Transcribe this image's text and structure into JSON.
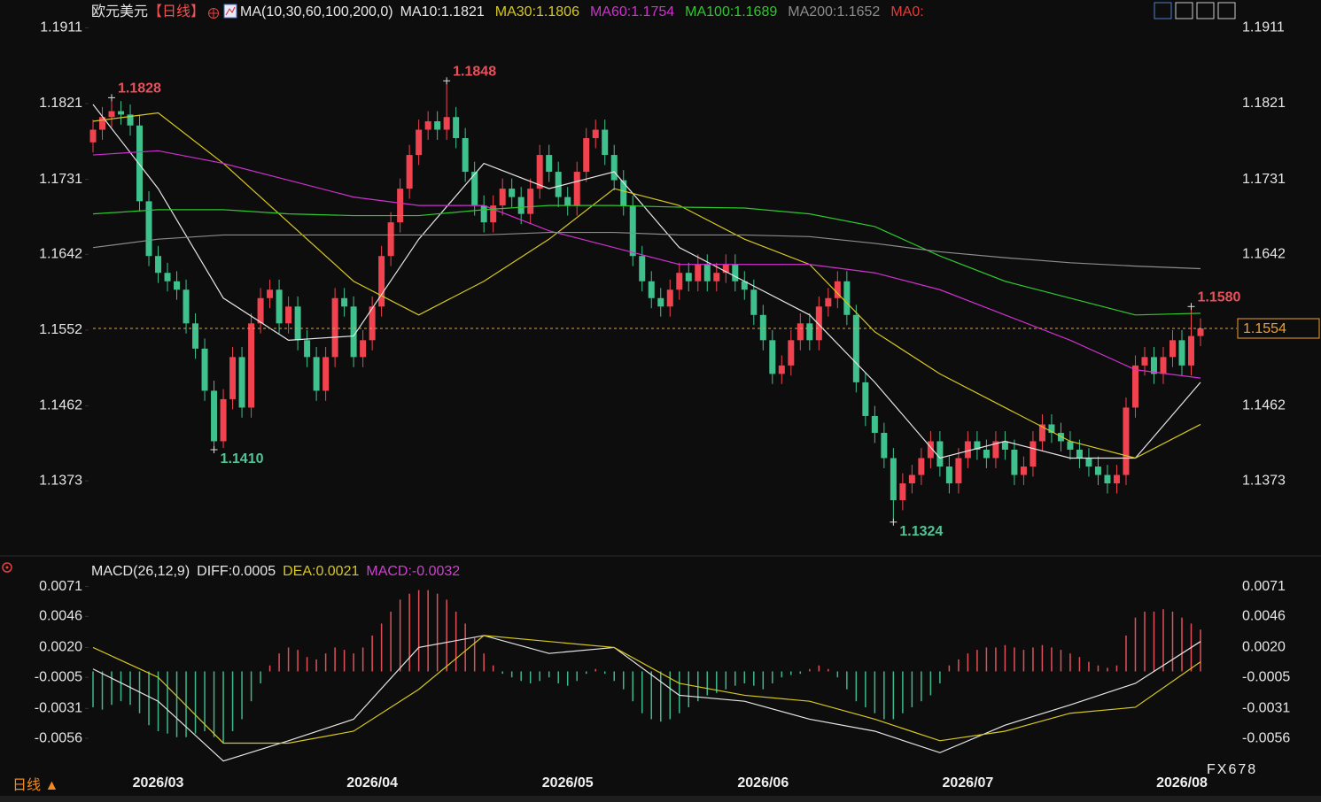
{
  "chart_data": [
    {
      "type": "candlestick",
      "title": "欧元美元",
      "period": "【日线】",
      "ma_title": "MA(10,30,60,100,200,0)",
      "colors": {
        "up": "#f0424f",
        "down": "#3ec18d",
        "title": "#e8e8e8",
        "period": "#f05050"
      },
      "open": [
        1.1775,
        1.179,
        1.1805,
        1.1812,
        1.1808,
        1.1795,
        1.1705,
        1.164,
        1.162,
        1.161,
        1.16,
        1.156,
        1.153,
        1.148,
        1.142,
        1.147,
        1.152,
        1.146,
        1.156,
        1.159,
        1.16,
        1.156,
        1.158,
        1.154,
        1.152,
        1.148,
        1.152,
        1.159,
        1.158,
        1.152,
        1.154,
        1.158,
        1.164,
        1.168,
        1.172,
        1.176,
        1.179,
        1.18,
        1.179,
        1.1805,
        1.178,
        1.174,
        1.17,
        1.168,
        1.17,
        1.172,
        1.171,
        1.169,
        1.172,
        1.176,
        1.174,
        1.171,
        1.17,
        1.174,
        1.178,
        1.179,
        1.176,
        1.173,
        1.17,
        1.164,
        1.161,
        1.159,
        1.158,
        1.16,
        1.162,
        1.161,
        1.163,
        1.161,
        1.162,
        1.163,
        1.161,
        1.16,
        1.157,
        1.154,
        1.15,
        1.151,
        1.154,
        1.156,
        1.154,
        1.158,
        1.159,
        1.161,
        1.157,
        1.149,
        1.145,
        1.143,
        1.14,
        1.135,
        1.137,
        1.138,
        1.14,
        1.142,
        1.139,
        1.137,
        1.14,
        1.142,
        1.141,
        1.14,
        1.142,
        1.141,
        1.138,
        1.139,
        1.142,
        1.144,
        1.143,
        1.142,
        1.141,
        1.14,
        1.139,
        1.138,
        1.137,
        1.138,
        1.146,
        1.151,
        1.152,
        1.15,
        1.152,
        1.154,
        1.151,
        1.1545
      ],
      "high": [
        1.1802,
        1.1817,
        1.1828,
        1.1824,
        1.182,
        1.1807,
        1.1717,
        1.1652,
        1.1632,
        1.1622,
        1.1612,
        1.1572,
        1.1542,
        1.1492,
        1.1482,
        1.1532,
        1.1532,
        1.1572,
        1.1602,
        1.1612,
        1.1612,
        1.1592,
        1.1592,
        1.1552,
        1.1532,
        1.1532,
        1.1602,
        1.1602,
        1.1592,
        1.1552,
        1.1592,
        1.1652,
        1.1692,
        1.1732,
        1.1772,
        1.1802,
        1.1812,
        1.1812,
        1.1848,
        1.1817,
        1.1792,
        1.1752,
        1.1712,
        1.1712,
        1.1732,
        1.1732,
        1.1722,
        1.1732,
        1.1772,
        1.1772,
        1.1752,
        1.1722,
        1.1752,
        1.1792,
        1.1802,
        1.1802,
        1.1772,
        1.1742,
        1.1712,
        1.1652,
        1.1622,
        1.1602,
        1.1612,
        1.1632,
        1.1632,
        1.1642,
        1.1642,
        1.1632,
        1.1642,
        1.1642,
        1.1622,
        1.1612,
        1.1582,
        1.1552,
        1.1522,
        1.1552,
        1.1572,
        1.1572,
        1.1592,
        1.1602,
        1.1622,
        1.1622,
        1.1582,
        1.1502,
        1.1462,
        1.1442,
        1.1412,
        1.1382,
        1.1392,
        1.1412,
        1.1432,
        1.1432,
        1.1402,
        1.1412,
        1.1432,
        1.1432,
        1.1422,
        1.1432,
        1.1432,
        1.1422,
        1.1402,
        1.1432,
        1.1452,
        1.1452,
        1.1442,
        1.1432,
        1.1422,
        1.1412,
        1.1402,
        1.1392,
        1.1392,
        1.1472,
        1.1522,
        1.1532,
        1.1532,
        1.1532,
        1.1552,
        1.1552,
        1.158,
        1.1566
      ],
      "low": [
        1.1763,
        1.1778,
        1.1793,
        1.1796,
        1.1783,
        1.1693,
        1.1628,
        1.1608,
        1.1598,
        1.1588,
        1.1548,
        1.1518,
        1.1468,
        1.141,
        1.1412,
        1.1458,
        1.1448,
        1.1448,
        1.1548,
        1.1578,
        1.1548,
        1.1548,
        1.1528,
        1.1508,
        1.1468,
        1.1468,
        1.1508,
        1.1568,
        1.1508,
        1.1508,
        1.1528,
        1.1568,
        1.1628,
        1.1668,
        1.1708,
        1.1748,
        1.1778,
        1.1778,
        1.1778,
        1.1768,
        1.1728,
        1.1688,
        1.1668,
        1.1668,
        1.1688,
        1.1698,
        1.1678,
        1.1678,
        1.1708,
        1.1728,
        1.1698,
        1.1688,
        1.1688,
        1.1728,
        1.1768,
        1.1748,
        1.1718,
        1.1688,
        1.1628,
        1.1598,
        1.1578,
        1.1568,
        1.1568,
        1.1588,
        1.1598,
        1.1598,
        1.1598,
        1.1598,
        1.1608,
        1.1598,
        1.1588,
        1.1558,
        1.1528,
        1.1488,
        1.1488,
        1.1498,
        1.1528,
        1.1528,
        1.1528,
        1.1568,
        1.1578,
        1.1558,
        1.1478,
        1.1438,
        1.1418,
        1.1388,
        1.1324,
        1.1338,
        1.1358,
        1.1368,
        1.1388,
        1.1378,
        1.1358,
        1.1358,
        1.1388,
        1.1398,
        1.1388,
        1.1388,
        1.1398,
        1.1368,
        1.1368,
        1.1378,
        1.1408,
        1.1418,
        1.1408,
        1.1398,
        1.1388,
        1.1378,
        1.1368,
        1.1358,
        1.1358,
        1.1368,
        1.1448,
        1.1498,
        1.1488,
        1.1488,
        1.1508,
        1.1498,
        1.1498,
        1.1533
      ],
      "close": [
        1.179,
        1.1805,
        1.1812,
        1.1808,
        1.1795,
        1.1705,
        1.164,
        1.162,
        1.161,
        1.16,
        1.156,
        1.153,
        1.148,
        1.142,
        1.147,
        1.152,
        1.146,
        1.156,
        1.159,
        1.16,
        1.156,
        1.158,
        1.154,
        1.152,
        1.148,
        1.152,
        1.159,
        1.158,
        1.152,
        1.154,
        1.158,
        1.164,
        1.168,
        1.172,
        1.176,
        1.179,
        1.18,
        1.179,
        1.1805,
        1.178,
        1.174,
        1.17,
        1.168,
        1.17,
        1.172,
        1.171,
        1.169,
        1.172,
        1.176,
        1.174,
        1.171,
        1.17,
        1.174,
        1.178,
        1.179,
        1.176,
        1.173,
        1.17,
        1.164,
        1.161,
        1.159,
        1.158,
        1.16,
        1.162,
        1.161,
        1.163,
        1.161,
        1.162,
        1.163,
        1.161,
        1.16,
        1.157,
        1.154,
        1.15,
        1.151,
        1.154,
        1.156,
        1.154,
        1.158,
        1.159,
        1.161,
        1.157,
        1.149,
        1.145,
        1.143,
        1.14,
        1.135,
        1.137,
        1.138,
        1.14,
        1.142,
        1.139,
        1.137,
        1.14,
        1.142,
        1.141,
        1.14,
        1.142,
        1.141,
        1.138,
        1.139,
        1.142,
        1.144,
        1.143,
        1.142,
        1.141,
        1.14,
        1.139,
        1.138,
        1.137,
        1.138,
        1.146,
        1.151,
        1.152,
        1.15,
        1.152,
        1.154,
        1.151,
        1.1545,
        1.1554
      ],
      "ma_x": [
        0,
        7,
        14,
        21,
        28,
        35,
        42,
        49,
        56,
        63,
        70,
        77,
        84,
        91,
        98,
        105,
        112,
        119
      ],
      "series": [
        {
          "name": "MA10:1.1821",
          "color": "#e6e6e6",
          "values": [
            1.182,
            1.172,
            1.159,
            1.154,
            1.1545,
            1.166,
            1.175,
            1.172,
            1.174,
            1.165,
            1.161,
            1.157,
            1.149,
            1.14,
            1.142,
            1.14,
            1.14,
            1.149
          ]
        },
        {
          "name": "MA30:1.1806",
          "color": "#d8c81e",
          "values": [
            1.18,
            1.181,
            1.175,
            1.168,
            1.161,
            1.157,
            1.161,
            1.166,
            1.172,
            1.17,
            1.166,
            1.163,
            1.155,
            1.15,
            1.146,
            1.142,
            1.14,
            1.144
          ]
        },
        {
          "name": "MA60:1.1754",
          "color": "#d030d0",
          "values": [
            1.176,
            1.1765,
            1.175,
            1.173,
            1.171,
            1.17,
            1.17,
            1.167,
            1.165,
            1.163,
            1.163,
            1.163,
            1.162,
            1.16,
            1.157,
            1.154,
            1.1505,
            1.1495
          ]
        },
        {
          "name": "MA100:1.1689",
          "color": "#2ec82e",
          "values": [
            1.169,
            1.1695,
            1.1695,
            1.169,
            1.1688,
            1.1688,
            1.1695,
            1.17,
            1.17,
            1.1698,
            1.1697,
            1.169,
            1.1675,
            1.164,
            1.161,
            1.159,
            1.157,
            1.1572
          ]
        },
        {
          "name": "MA200:1.1652",
          "color": "#8c8c8c",
          "values": [
            1.165,
            1.166,
            1.1665,
            1.1665,
            1.1665,
            1.1665,
            1.1665,
            1.1668,
            1.1668,
            1.1665,
            1.1665,
            1.1663,
            1.1655,
            1.1645,
            1.1638,
            1.1632,
            1.1628,
            1.1625
          ]
        }
      ],
      "extra_legend": {
        "name": "MA0:",
        "color": "#e83a3a"
      },
      "ylim": [
        1.1287,
        1.1923
      ],
      "yticks": [
        1.1911,
        1.1821,
        1.1731,
        1.1642,
        1.1552,
        1.1462,
        1.1373
      ],
      "last_price": 1.1554,
      "last_price_color": "#f0a030",
      "high_labels": [
        {
          "x": 2,
          "value": 1.1828
        },
        {
          "x": 38,
          "value": 1.1848
        },
        {
          "x": 118,
          "value": 1.158,
          "label": "1.1580"
        }
      ],
      "low_labels": [
        {
          "x": 13,
          "value": 1.141,
          "label": "1.1410"
        },
        {
          "x": 86,
          "value": 1.1324
        }
      ]
    },
    {
      "type": "macd",
      "title": "MACD(26,12,9)",
      "x": [
        0,
        7,
        14,
        21,
        28,
        35,
        42,
        49,
        56,
        63,
        70,
        77,
        84,
        91,
        98,
        105,
        112,
        119
      ],
      "series": [
        {
          "name": "DIFF:0.0005",
          "color": "#e6e6e6",
          "values": [
            0.0002,
            -0.0025,
            -0.0075,
            -0.0058,
            -0.004,
            0.002,
            0.003,
            0.0015,
            0.002,
            -0.002,
            -0.0025,
            -0.004,
            -0.005,
            -0.0068,
            -0.0045,
            -0.0028,
            -0.001,
            0.0025
          ]
        },
        {
          "name": "DEA:0.0021",
          "color": "#d8c81e",
          "values": [
            0.002,
            -0.0005,
            -0.006,
            -0.006,
            -0.005,
            -0.0015,
            0.003,
            0.0025,
            0.002,
            -0.001,
            -0.002,
            -0.0025,
            -0.004,
            -0.0058,
            -0.005,
            -0.0035,
            -0.003,
            0.0008
          ]
        }
      ],
      "histogram": {
        "name": "MACD:-0.0032",
        "legend_color": "#d040d0",
        "up_color": "#e0505a",
        "down_color": "#3eb88a",
        "values": [
          -0.003,
          -0.0032,
          -0.0028,
          -0.0025,
          -0.0028,
          -0.0035,
          -0.0045,
          -0.005,
          -0.0052,
          -0.0055,
          -0.0055,
          -0.0052,
          -0.005,
          -0.0055,
          -0.006,
          -0.005,
          -0.004,
          -0.0025,
          -0.001,
          0.0005,
          0.0015,
          0.002,
          0.0018,
          0.0012,
          0.001,
          0.0015,
          0.002,
          0.0018,
          0.0015,
          0.002,
          0.003,
          0.004,
          0.005,
          0.006,
          0.0065,
          0.0068,
          0.0068,
          0.0065,
          0.006,
          0.005,
          0.004,
          0.0028,
          0.0015,
          0.0005,
          -0.0002,
          -0.0005,
          -0.0008,
          -0.001,
          -0.0008,
          -0.0005,
          -0.001,
          -0.0012,
          -0.0008,
          -0.0002,
          0.0002,
          -0.0002,
          -0.0008,
          -0.0015,
          -0.0025,
          -0.0035,
          -0.004,
          -0.0042,
          -0.004,
          -0.0035,
          -0.003,
          -0.0025,
          -0.002,
          -0.0018,
          -0.0015,
          -0.0012,
          -0.001,
          -0.0012,
          -0.0015,
          -0.001,
          -0.0005,
          -0.0003,
          -0.0002,
          0.0002,
          0.0005,
          0.0002,
          -0.0005,
          -0.0015,
          -0.0025,
          -0.003,
          -0.0035,
          -0.004,
          -0.004,
          -0.0035,
          -0.003,
          -0.0025,
          -0.002,
          -0.001,
          0.0005,
          0.001,
          0.0015,
          0.0018,
          0.002,
          0.002,
          0.0022,
          0.002,
          0.0018,
          0.002,
          0.0022,
          0.002,
          0.0018,
          0.0015,
          0.0012,
          0.0008,
          0.0005,
          0.0003,
          0.0005,
          0.003,
          0.0045,
          0.005,
          0.005,
          0.0052,
          0.005,
          0.0045,
          0.004,
          0.0035
        ]
      },
      "ylim": [
        -0.009,
        0.0084
      ],
      "yticks": [
        0.0071,
        0.0046,
        {
          "value": 0.002,
          "label": "0.0020"
        },
        -0.0005,
        -0.0031,
        -0.0056
      ],
      "x_labels": [
        {
          "x": 7,
          "label": "2026/03"
        },
        {
          "x": 30,
          "label": "2026/04"
        },
        {
          "x": 51,
          "label": "2026/05"
        },
        {
          "x": 72,
          "label": "2026/06"
        },
        {
          "x": 94,
          "label": "2026/07"
        },
        {
          "x": 117,
          "label": "2026/08"
        }
      ]
    }
  ],
  "footer": {
    "period": "日线 ▲",
    "watermark": "FX678"
  }
}
